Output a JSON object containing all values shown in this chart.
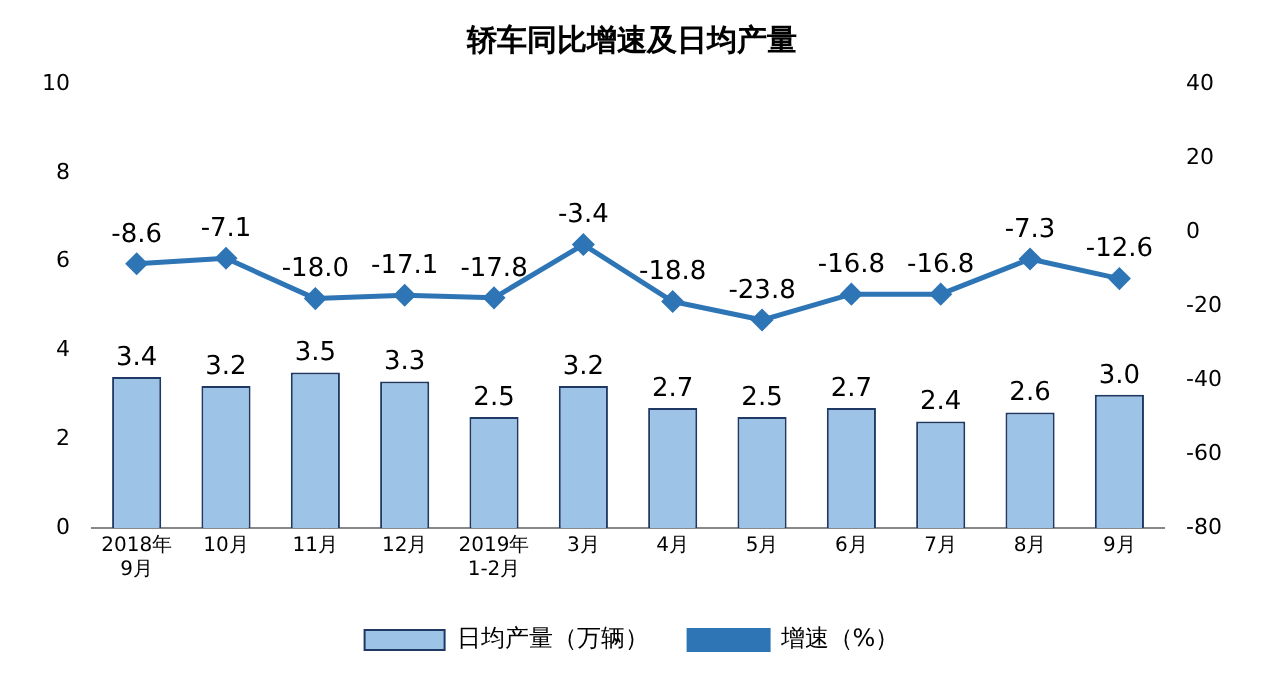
{
  "chart_data": {
    "type": "bar",
    "title": "轿车同比增速及日均产量",
    "categories": [
      "2018年\n9月",
      "10月",
      "11月",
      "12月",
      "2019年\n1-2月",
      "3月",
      "4月",
      "5月",
      "6月",
      "7月",
      "8月",
      "9月"
    ],
    "series": [
      {
        "name": "日均产量（万辆）",
        "color": "#9dc3e6",
        "values": [
          3.4,
          3.2,
          3.5,
          3.3,
          2.5,
          3.2,
          2.7,
          2.5,
          2.7,
          2.4,
          2.6,
          3.0
        ],
        "value_labels": [
          "3.4",
          "3.2",
          "3.5",
          "3.3",
          "2.5",
          "3.2",
          "2.7",
          "2.5",
          "2.7",
          "2.4",
          "2.6",
          "3.0"
        ]
      },
      {
        "name": "增速（%）",
        "type": "line",
        "axis": "y2",
        "color": "#2e75b6",
        "values": [
          -8.6,
          -7.1,
          -18.0,
          -17.1,
          -17.8,
          -3.4,
          -18.8,
          -23.8,
          -16.8,
          -16.8,
          -7.3,
          -12.6
        ],
        "value_labels": [
          "-8.6",
          "-7.1",
          "-18.0",
          "-17.1",
          "-17.8",
          "-3.4",
          "-18.8",
          "-23.8",
          "-16.8",
          "-16.8",
          "-7.3",
          "-12.6"
        ]
      }
    ],
    "ylim": [
      0,
      10
    ],
    "yticks": [
      0,
      2,
      4,
      6,
      8,
      10
    ],
    "y2lim": [
      -80,
      40
    ],
    "y2ticks": [
      -80,
      -60,
      -40,
      -20,
      0,
      20,
      40
    ],
    "grid": false,
    "legend": "bottom",
    "marker": "diamond",
    "line_style": "solid"
  }
}
